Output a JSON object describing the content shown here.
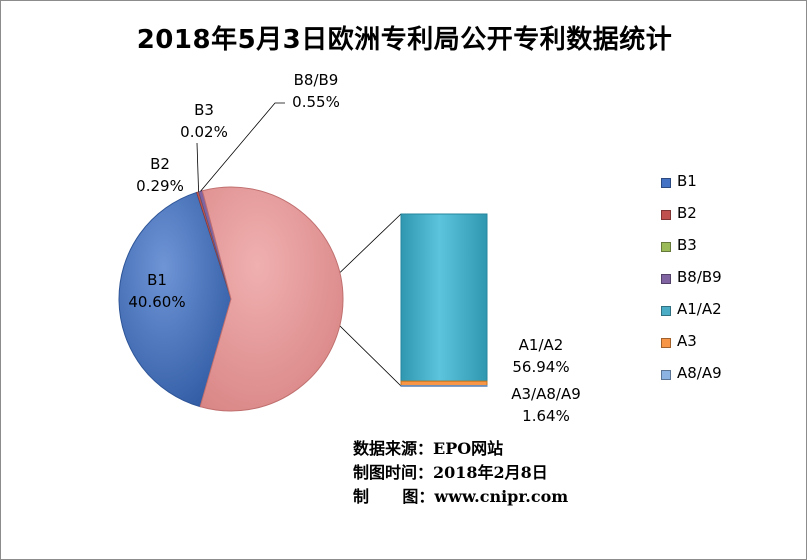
{
  "chart_data": {
    "type": "bar-of-pie",
    "title": "2018年5月3日欧洲专利局公开专利数据统计",
    "series": [
      {
        "name": "B1",
        "value_pct": 40.6,
        "label": "40.60%",
        "color": "#4472c4"
      },
      {
        "name": "B2",
        "value_pct": 0.29,
        "label": "0.29%",
        "color": "#c0504d"
      },
      {
        "name": "B3",
        "value_pct": 0.02,
        "label": "0.02%",
        "color": "#9bbb59"
      },
      {
        "name": "B8/B9",
        "value_pct": 0.55,
        "label": "0.55%",
        "color": "#8064a2"
      },
      {
        "name": "A1/A2",
        "value_pct": 56.94,
        "label": "56.94%",
        "color": "#4bacc6"
      },
      {
        "name": "A3",
        "value_pct": 1.49,
        "color": "#f79646"
      },
      {
        "name": "A8/A9",
        "value_pct": 0.15,
        "color": "#8db3e2"
      }
    ],
    "pie_group": {
      "name": "A3/A8/A9",
      "label": "1.64%",
      "value_pct": 58.58,
      "color": "#e6999a"
    },
    "legend_position": "right",
    "legend_entries": [
      "B1",
      "B2",
      "B3",
      "B8/B9",
      "A1/A2",
      "A3",
      "A8/A9"
    ]
  },
  "source_note": {
    "line1": "数据来源：EPO网站",
    "line2": "制图时间：2018年2月8日",
    "line3": "制      图：www.cnipr.com"
  }
}
